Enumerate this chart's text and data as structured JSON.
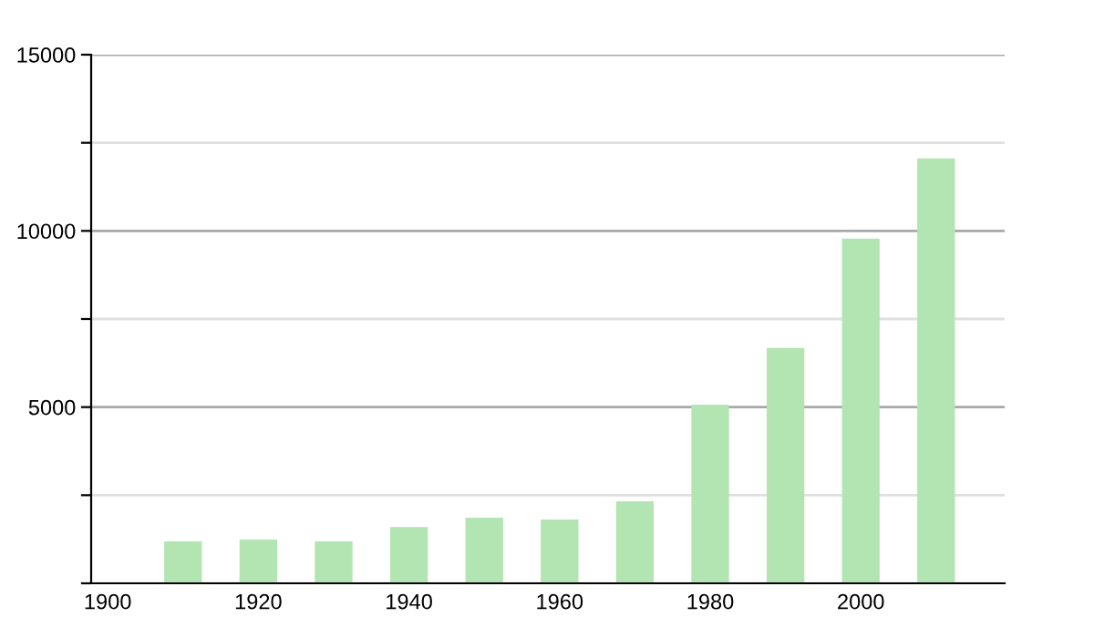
{
  "chart_data": {
    "type": "bar",
    "x": [
      1910,
      1920,
      1930,
      1940,
      1950,
      1960,
      1970,
      1980,
      1990,
      2000,
      2010
    ],
    "values": [
      1190,
      1240,
      1190,
      1600,
      1860,
      1810,
      2330,
      5070,
      6680,
      9780,
      12060
    ],
    "color": "#b3e5b3",
    "xlim": [
      1897.8,
      2019.1
    ],
    "xticks": [
      1900,
      1920,
      1940,
      1960,
      1980,
      2000
    ],
    "ylim": [
      0,
      15000
    ],
    "yticks": [
      {
        "value": 0,
        "label": null
      },
      {
        "value": 2500,
        "label": null
      },
      5000,
      {
        "value": 7500,
        "label": null
      },
      10000,
      {
        "value": 12500,
        "label": null
      },
      15000
    ],
    "grid": "y"
  }
}
